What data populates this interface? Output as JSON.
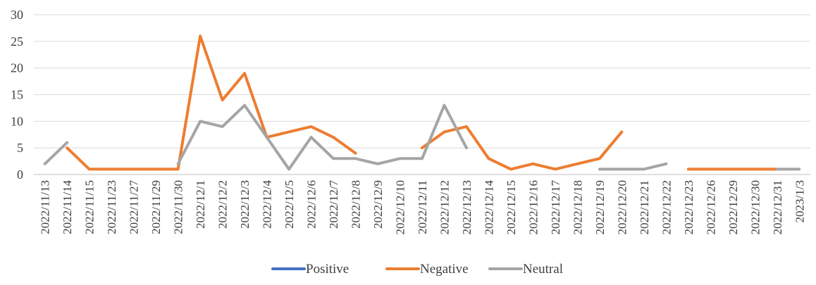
{
  "chart_data": {
    "type": "line",
    "title": "",
    "xlabel": "",
    "ylabel": "",
    "ylim": [
      0,
      30
    ],
    "yticks": [
      0,
      5,
      10,
      15,
      20,
      25,
      30
    ],
    "grid": "horizontal",
    "legend": "bottom",
    "categories": [
      "2022/11/13",
      "2022/11/14",
      "2022/11/15",
      "2022/11/23",
      "2022/11/27",
      "2022/11/29",
      "2022/11/30",
      "2022/12/1",
      "2022/12/2",
      "2022/12/3",
      "2022/12/4",
      "2022/12/5",
      "2022/12/6",
      "2022/12/7",
      "2022/12/8",
      "2022/12/9",
      "2022/12/10",
      "2022/12/11",
      "2022/12/12",
      "2022/12/13",
      "2022/12/14",
      "2022/12/15",
      "2022/12/16",
      "2022/12/17",
      "2022/12/18",
      "2022/12/19",
      "2022/12/20",
      "2022/12/21",
      "2022/12/22",
      "2022/12/23",
      "2022/12/26",
      "2022/12/29",
      "2022/12/30",
      "2022/12/31",
      "2023/1/3"
    ],
    "series": [
      {
        "name": "Positive",
        "color": "#4472C4",
        "values": [
          null,
          null,
          null,
          null,
          null,
          null,
          null,
          null,
          null,
          null,
          null,
          null,
          null,
          null,
          null,
          null,
          null,
          null,
          null,
          null,
          null,
          null,
          null,
          null,
          null,
          null,
          null,
          null,
          null,
          null,
          null,
          null,
          null,
          null,
          null
        ]
      },
      {
        "name": "Negative",
        "color": "#ED7D31",
        "values": [
          null,
          5,
          1,
          1,
          1,
          1,
          1,
          26,
          14,
          19,
          7,
          8,
          9,
          7,
          4,
          null,
          null,
          5,
          8,
          9,
          3,
          1,
          2,
          1,
          2,
          3,
          8,
          null,
          null,
          1,
          1,
          1,
          1,
          1,
          null
        ]
      },
      {
        "name": "Neutral",
        "color": "#A5A5A5",
        "values": [
          2,
          6,
          null,
          null,
          null,
          null,
          2,
          10,
          9,
          13,
          7,
          1,
          7,
          3,
          3,
          2,
          3,
          3,
          13,
          5,
          null,
          null,
          null,
          null,
          null,
          1,
          1,
          1,
          2,
          null,
          null,
          null,
          null,
          1,
          1
        ]
      }
    ]
  }
}
